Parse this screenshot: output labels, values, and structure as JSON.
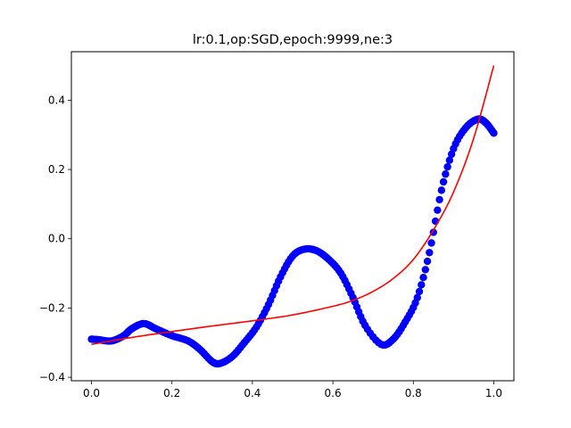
{
  "chart_data": {
    "type": "scatter",
    "title": "lr:0.1,op:SGD,epoch:9999,ne:3",
    "xlabel": "",
    "ylabel": "",
    "xlim": [
      -0.05,
      1.05
    ],
    "ylim": [
      -0.41,
      0.54
    ],
    "xticks": [
      0.0,
      0.2,
      0.4,
      0.6,
      0.8,
      1.0
    ],
    "xtick_labels": [
      "0.0",
      "0.2",
      "0.4",
      "0.6",
      "0.8",
      "1.0"
    ],
    "yticks": [
      -0.4,
      -0.2,
      0.0,
      0.2,
      0.4
    ],
    "ytick_labels": [
      "−0.4",
      "−0.2",
      "0.0",
      "0.2",
      "0.4"
    ],
    "grid": false,
    "legend": "none",
    "series": [
      {
        "kind": "scatter",
        "color": "#0000ff",
        "x": [
          0.0,
          0.02,
          0.05,
          0.08,
          0.1,
          0.13,
          0.16,
          0.2,
          0.24,
          0.27,
          0.3,
          0.32,
          0.35,
          0.38,
          0.41,
          0.44,
          0.47,
          0.5,
          0.53,
          0.56,
          0.59,
          0.62,
          0.65,
          0.68,
          0.72,
          0.75,
          0.78,
          0.81,
          0.84,
          0.87,
          0.9,
          0.93,
          0.96,
          0.98,
          1.0
        ],
        "y": [
          -0.29,
          -0.292,
          -0.295,
          -0.28,
          -0.26,
          -0.245,
          -0.26,
          -0.28,
          -0.295,
          -0.32,
          -0.355,
          -0.36,
          -0.34,
          -0.3,
          -0.255,
          -0.19,
          -0.11,
          -0.05,
          -0.03,
          -0.035,
          -0.06,
          -0.1,
          -0.17,
          -0.25,
          -0.305,
          -0.29,
          -0.24,
          -0.17,
          -0.04,
          0.14,
          0.26,
          0.32,
          0.345,
          0.335,
          0.305
        ]
      },
      {
        "kind": "line",
        "color": "#ff0000",
        "x": [
          0.0,
          0.1,
          0.2,
          0.3,
          0.4,
          0.5,
          0.6,
          0.65,
          0.7,
          0.75,
          0.8,
          0.85,
          0.9,
          0.95,
          1.0
        ],
        "y": [
          -0.305,
          -0.285,
          -0.268,
          -0.252,
          -0.237,
          -0.22,
          -0.195,
          -0.178,
          -0.152,
          -0.115,
          -0.06,
          0.025,
          0.135,
          0.29,
          0.5
        ]
      }
    ]
  }
}
